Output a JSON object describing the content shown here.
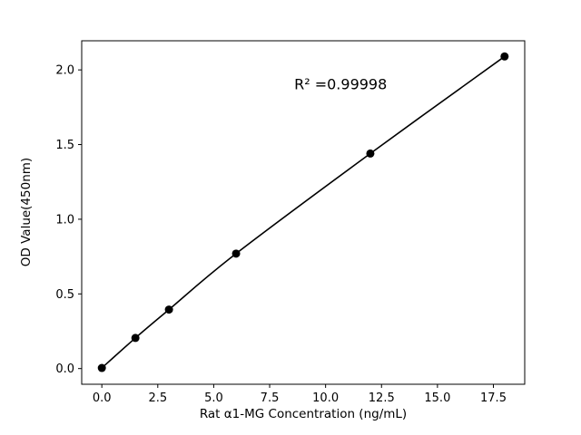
{
  "chart_data": {
    "type": "line",
    "title": "",
    "xlabel": "Rat α1-MG Concentration (ng/mL)",
    "ylabel": "OD Value(450nm)",
    "x": [
      0,
      1.5,
      3,
      6,
      12,
      18
    ],
    "y": [
      0.004,
      0.205,
      0.395,
      0.77,
      1.44,
      2.09
    ],
    "xticks": [
      0.0,
      2.5,
      5.0,
      7.5,
      10.0,
      12.5,
      15.0,
      17.5
    ],
    "yticks": [
      0.0,
      0.5,
      1.0,
      1.5,
      2.0
    ],
    "xlim": [
      -0.9,
      18.9
    ],
    "ylim": [
      -0.105,
      2.195
    ],
    "annotation": "R² =0.99998",
    "annotation_x": 8.6,
    "annotation_y": 1.87,
    "line_color": "#000000",
    "marker_color": "#000000",
    "axis_color": "#000000",
    "grid": false,
    "legend": "none"
  }
}
